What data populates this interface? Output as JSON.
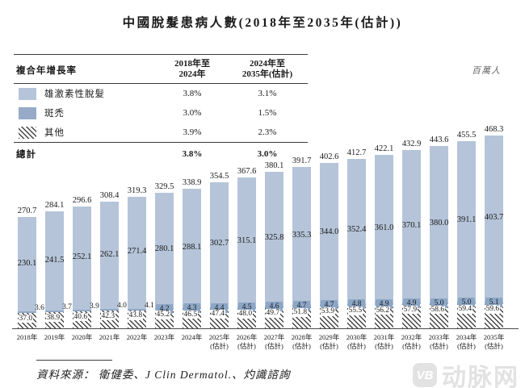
{
  "title": "中國脫髮患病人數(2018年至2035年(估計))",
  "unit_label": "百萬人",
  "cagr_table": {
    "header": {
      "label": "複合年增長率",
      "col1_lines": [
        "2018年至",
        "2024年"
      ],
      "col2_lines": [
        "2024年至",
        "2035年(估計)"
      ]
    },
    "rows": [
      {
        "swatch": "androgenetic-alopecia-swatch",
        "label": "雄激素性脫髮",
        "col1": "3.8%",
        "col2": "3.1%"
      },
      {
        "swatch": "alopecia-areata-swatch",
        "label": "斑禿",
        "col1": "3.0%",
        "col2": "1.5%"
      },
      {
        "swatch": "other-swatch",
        "label": "其他",
        "col1": "3.9%",
        "col2": "2.3%"
      }
    ],
    "total": {
      "label": "總計",
      "col1": "3.8%",
      "col2": "3.0%"
    }
  },
  "chart_data": {
    "type": "bar",
    "stacked": true,
    "unit": "百萬人",
    "legend_position": "top-left-table",
    "grid": false,
    "categories": [
      "2018年",
      "2019年",
      "2020年",
      "2021年",
      "2022年",
      "2023年",
      "2024年",
      "2025年(估計)",
      "2026年(估計)",
      "2027年(估計)",
      "2028年(估計)",
      "2029年(估計)",
      "2030年(估計)",
      "2031年(估計)",
      "2032年(估計)",
      "2033年(估計)",
      "2034年(估計)",
      "2035年(估計)"
    ],
    "series": [
      {
        "name": "雄激素性脫髮",
        "color": "#b5c4d8",
        "values": [
          230.1,
          241.5,
          252.1,
          262.1,
          271.4,
          280.1,
          288.1,
          302.7,
          315.1,
          325.8,
          335.3,
          344.0,
          352.4,
          361.0,
          370.1,
          380.0,
          391.1,
          403.7
        ]
      },
      {
        "name": "斑禿",
        "color": "#92a9c7",
        "values": [
          3.6,
          3.7,
          3.9,
          4.0,
          4.1,
          4.2,
          4.3,
          4.4,
          4.5,
          4.6,
          4.7,
          4.7,
          4.8,
          4.9,
          4.9,
          5.0,
          5.0,
          5.1
        ]
      },
      {
        "name": "其他",
        "color": "hatch-diagonal",
        "values": [
          37.0,
          38.9,
          40.6,
          42.3,
          43.8,
          45.2,
          46.5,
          47.4,
          48.0,
          49.7,
          51.8,
          53.9,
          55.5,
          56.2,
          57.9,
          58.6,
          59.4,
          59.6
        ]
      }
    ],
    "totals": [
      270.7,
      284.1,
      296.6,
      308.4,
      319.3,
      329.5,
      338.9,
      354.5,
      367.6,
      380.1,
      391.7,
      402.6,
      412.7,
      422.1,
      432.9,
      443.6,
      455.5,
      468.3
    ],
    "ylim": [
      0,
      480
    ]
  },
  "source": "資料來源： 衛健委、J Clin Dermatol.、灼識諮詢",
  "logo": {
    "badge": "VB",
    "text": "动脉网"
  }
}
